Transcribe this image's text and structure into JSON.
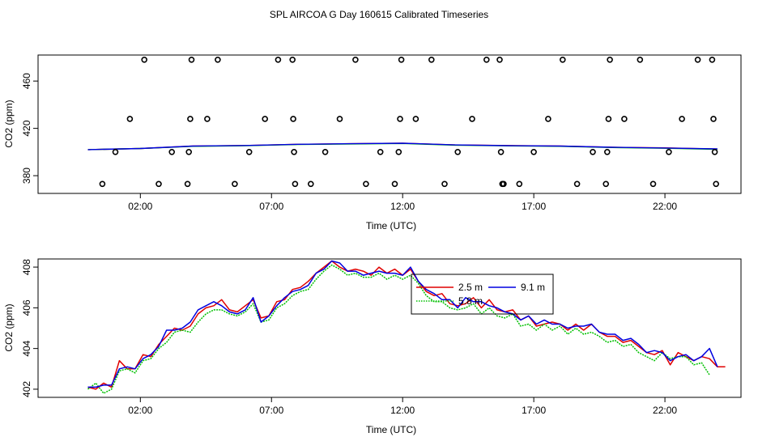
{
  "title": "SPL AIRCOA G  Day 160615  Calibrated Timeseries",
  "colors": {
    "red": "#e00000",
    "green": "#00c000",
    "blue": "#0000e0",
    "black": "#000000"
  },
  "chart_data": [
    {
      "type": "scatter",
      "xlabel": "Time (UTC)",
      "ylabel": "CO2 (ppm)",
      "xlim": [
        -1.9,
        24.9
      ],
      "ylim": [
        365,
        482
      ],
      "x_ticks": [
        2,
        7,
        12,
        17,
        22
      ],
      "x_tick_labels": [
        "02:00",
        "07:00",
        "12:00",
        "17:00",
        "22:00"
      ],
      "y_ticks": [
        380,
        420,
        460
      ],
      "y_tick_labels": [
        "380",
        "420",
        "460"
      ],
      "grid": false,
      "points": {
        "x": [
          0.55,
          1.05,
          1.6,
          2.15,
          2.7,
          3.2,
          3.8,
          3.85,
          3.9,
          3.95,
          4.55,
          4.95,
          5.6,
          6.15,
          6.75,
          7.25,
          7.8,
          7.83,
          7.86,
          7.9,
          8.5,
          9.05,
          9.6,
          10.2,
          10.6,
          11.15,
          11.7,
          11.85,
          11.9,
          11.95,
          12.5,
          13.1,
          13.6,
          14.1,
          14.65,
          15.2,
          15.7,
          15.75,
          15.8,
          15.85,
          16.45,
          17.0,
          17.55,
          18.1,
          18.65,
          19.25,
          19.75,
          19.8,
          19.85,
          19.9,
          20.45,
          21.05,
          21.55,
          22.15,
          22.65,
          23.25,
          23.8,
          23.85,
          23.9,
          23.95
        ],
        "y": [
          373,
          400,
          428,
          478,
          373,
          400,
          373,
          400,
          428,
          478,
          428,
          478,
          373,
          400,
          428,
          478,
          478,
          428,
          400,
          373,
          373,
          400,
          428,
          478,
          373,
          400,
          373,
          400,
          428,
          478,
          428,
          478,
          373,
          400,
          428,
          478,
          478,
          400,
          373,
          373,
          373,
          400,
          428,
          478,
          373,
          400,
          373,
          400,
          428,
          478,
          428,
          478,
          373,
          400,
          428,
          478,
          478,
          428,
          400,
          373
        ]
      },
      "series": [
        {
          "color": "red",
          "x": [
            0,
            2,
            4,
            6,
            8,
            10,
            12,
            14,
            16,
            18,
            20,
            22,
            24
          ],
          "values": [
            402,
            403,
            405,
            405.5,
            406.5,
            407,
            407.5,
            406,
            405.5,
            405,
            404,
            403.5,
            402.5
          ]
        },
        {
          "color": "green",
          "x": [
            0,
            2,
            4,
            6,
            8,
            10,
            12,
            14,
            16,
            18,
            20,
            22,
            24
          ],
          "values": [
            402,
            403,
            404.8,
            405.3,
            406.3,
            406.8,
            407.2,
            405.8,
            405.2,
            404.8,
            403.8,
            403.2,
            402.3
          ]
        },
        {
          "color": "blue",
          "x": [
            0,
            2,
            4,
            6,
            8,
            10,
            12,
            14,
            16,
            18,
            20,
            22,
            24
          ],
          "values": [
            402,
            403,
            405,
            405.5,
            406.5,
            407,
            407.4,
            406,
            405.4,
            405,
            404,
            403.4,
            402.6
          ]
        }
      ]
    },
    {
      "type": "line",
      "xlabel": "Time (UTC)",
      "ylabel": "CO2 (ppm)",
      "xlim": [
        -1.9,
        24.9
      ],
      "ylim": [
        401.6,
        408.4
      ],
      "x_ticks": [
        2,
        7,
        12,
        17,
        22
      ],
      "x_tick_labels": [
        "02:00",
        "07:00",
        "12:00",
        "17:00",
        "22:00"
      ],
      "y_ticks": [
        402,
        404,
        406,
        408
      ],
      "y_tick_labels": [
        "402",
        "404",
        "406",
        "408"
      ],
      "grid": false,
      "legend": {
        "position": "top-right",
        "entries": [
          {
            "label": "2.5 m",
            "color": "red",
            "style": "solid"
          },
          {
            "label": "9.1 m",
            "color": "blue",
            "style": "solid"
          },
          {
            "label": "5.8 m",
            "color": "green",
            "style": "dotted"
          }
        ]
      },
      "series": [
        {
          "name": "2.5 m",
          "color": "red",
          "x": [
            0,
            0.3,
            0.6,
            0.9,
            1.2,
            1.5,
            1.8,
            2.1,
            2.4,
            2.7,
            3.0,
            3.3,
            3.6,
            3.9,
            4.2,
            4.5,
            4.8,
            5.1,
            5.4,
            5.7,
            6.0,
            6.3,
            6.6,
            6.9,
            7.2,
            7.5,
            7.8,
            8.1,
            8.4,
            8.7,
            9.0,
            9.3,
            9.6,
            9.9,
            10.2,
            10.5,
            10.8,
            11.1,
            11.4,
            11.7,
            12.0,
            12.3,
            12.6,
            12.9,
            13.2,
            13.5,
            13.8,
            14.1,
            14.4,
            14.7,
            15.0,
            15.3,
            15.6,
            15.9,
            16.2,
            16.5,
            16.8,
            17.1,
            17.4,
            17.7,
            18.0,
            18.3,
            18.6,
            18.9,
            19.2,
            19.5,
            19.8,
            20.1,
            20.4,
            20.7,
            21.0,
            21.3,
            21.6,
            21.9,
            22.2,
            22.5,
            22.8,
            23.1,
            23.4,
            23.7,
            24.0,
            24.3
          ],
          "values": [
            402.1,
            402.0,
            402.3,
            402.1,
            403.4,
            403.0,
            403.0,
            403.7,
            403.6,
            404.2,
            404.6,
            405.0,
            404.9,
            405.1,
            405.7,
            406.0,
            406.1,
            406.4,
            405.9,
            405.8,
            406.1,
            406.4,
            405.5,
            405.6,
            406.3,
            406.4,
            406.9,
            407.0,
            407.3,
            407.7,
            408.0,
            408.3,
            408.0,
            407.8,
            407.9,
            407.8,
            407.6,
            408.0,
            407.7,
            407.9,
            407.6,
            407.9,
            407.3,
            406.8,
            406.6,
            406.7,
            406.2,
            406.1,
            406.2,
            406.5,
            406.0,
            406.4,
            405.9,
            405.8,
            405.9,
            405.4,
            405.6,
            405.1,
            405.2,
            405.3,
            405.2,
            404.9,
            405.2,
            404.9,
            405.2,
            404.8,
            404.6,
            404.6,
            404.3,
            404.4,
            404.1,
            403.8,
            403.7,
            403.9,
            403.2,
            403.8,
            403.6,
            403.4,
            403.6,
            403.5,
            403.1,
            403.1
          ]
        },
        {
          "name": "5.8 m",
          "color": "green",
          "x": [
            0,
            0.3,
            0.6,
            0.9,
            1.2,
            1.5,
            1.8,
            2.1,
            2.4,
            2.7,
            3.0,
            3.3,
            3.6,
            3.9,
            4.2,
            4.5,
            4.8,
            5.1,
            5.4,
            5.7,
            6.0,
            6.3,
            6.6,
            6.9,
            7.2,
            7.5,
            7.8,
            8.1,
            8.4,
            8.7,
            9.0,
            9.3,
            9.6,
            9.9,
            10.2,
            10.5,
            10.8,
            11.1,
            11.4,
            11.7,
            12.0,
            12.3,
            12.6,
            12.9,
            13.2,
            13.5,
            13.8,
            14.1,
            14.4,
            14.7,
            15.0,
            15.3,
            15.6,
            15.9,
            16.2,
            16.5,
            16.8,
            17.1,
            17.4,
            17.7,
            18.0,
            18.3,
            18.6,
            18.9,
            19.2,
            19.5,
            19.8,
            20.1,
            20.4,
            20.7,
            21.0,
            21.3,
            21.6,
            21.9,
            22.2,
            22.5,
            22.8,
            23.1,
            23.4,
            23.7
          ],
          "values": [
            402.0,
            402.3,
            401.8,
            402.0,
            402.9,
            403.0,
            402.8,
            403.4,
            403.5,
            404.0,
            404.3,
            404.8,
            404.9,
            404.8,
            405.3,
            405.7,
            405.9,
            405.9,
            405.7,
            405.6,
            405.8,
            406.2,
            405.3,
            405.4,
            406.0,
            406.2,
            406.6,
            406.8,
            406.9,
            407.4,
            407.8,
            408.1,
            407.9,
            407.6,
            407.7,
            407.5,
            407.5,
            407.7,
            407.4,
            407.6,
            407.4,
            407.6,
            407.2,
            406.6,
            406.3,
            406.3,
            406.0,
            405.9,
            406.0,
            406.2,
            405.7,
            406.0,
            405.6,
            405.5,
            405.7,
            405.1,
            405.2,
            404.9,
            405.2,
            404.9,
            405.1,
            404.7,
            405.0,
            404.7,
            404.8,
            404.6,
            404.3,
            404.4,
            404.1,
            404.2,
            403.8,
            403.6,
            403.4,
            403.8,
            403.5,
            403.6,
            403.6,
            403.2,
            403.3,
            402.7
          ]
        },
        {
          "name": "9.1 m",
          "color": "blue",
          "x": [
            0,
            0.3,
            0.6,
            0.9,
            1.2,
            1.5,
            1.8,
            2.1,
            2.4,
            2.7,
            3.0,
            3.3,
            3.6,
            3.9,
            4.2,
            4.5,
            4.8,
            5.1,
            5.4,
            5.7,
            6.0,
            6.3,
            6.6,
            6.9,
            7.2,
            7.5,
            7.8,
            8.1,
            8.4,
            8.7,
            9.0,
            9.3,
            9.6,
            9.9,
            10.2,
            10.5,
            10.8,
            11.1,
            11.4,
            11.7,
            12.0,
            12.3,
            12.6,
            12.9,
            13.2,
            13.5,
            13.8,
            14.1,
            14.4,
            14.7,
            15.0,
            15.3,
            15.6,
            15.9,
            16.2,
            16.5,
            16.8,
            17.1,
            17.4,
            17.7,
            18.0,
            18.3,
            18.6,
            18.9,
            19.2,
            19.5,
            19.8,
            20.1,
            20.4,
            20.7,
            21.0,
            21.3,
            21.6,
            21.9,
            22.2,
            22.5,
            22.8,
            23.1,
            23.4,
            23.7,
            24.0
          ],
          "values": [
            402.1,
            402.1,
            402.2,
            402.2,
            403.0,
            403.1,
            403.0,
            403.5,
            403.7,
            404.1,
            404.9,
            404.9,
            405.0,
            405.3,
            405.9,
            406.1,
            406.3,
            406.1,
            405.8,
            405.7,
            405.9,
            406.5,
            405.3,
            405.6,
            406.1,
            406.5,
            406.8,
            406.9,
            407.1,
            407.7,
            407.9,
            408.3,
            408.2,
            407.8,
            407.8,
            407.6,
            407.7,
            407.8,
            407.7,
            407.7,
            407.6,
            408.0,
            407.3,
            406.9,
            406.7,
            406.4,
            406.4,
            406.0,
            406.5,
            406.3,
            406.3,
            406.1,
            406.0,
            405.8,
            405.7,
            405.4,
            405.6,
            405.2,
            405.4,
            405.2,
            405.2,
            405.0,
            405.1,
            405.1,
            405.2,
            404.8,
            404.7,
            404.7,
            404.4,
            404.5,
            404.2,
            403.8,
            403.9,
            403.8,
            403.4,
            403.6,
            403.7,
            403.4,
            403.6,
            404.0,
            403.1
          ]
        }
      ]
    }
  ]
}
